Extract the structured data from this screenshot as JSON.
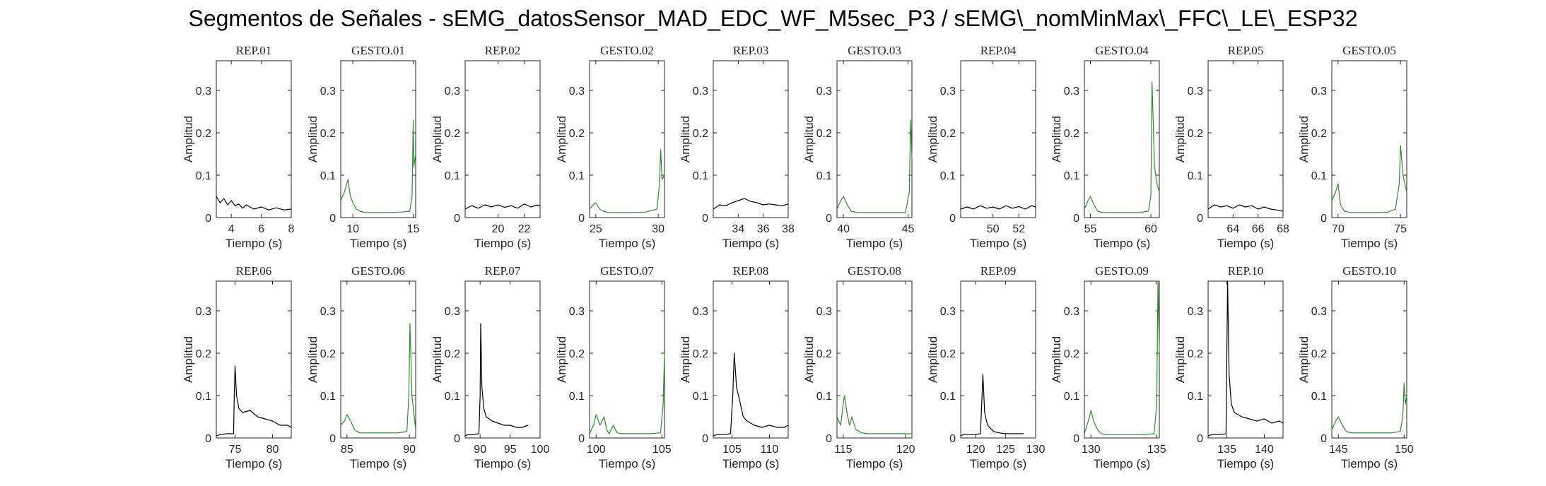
{
  "title": "Segmentos de Señales - sEMG_datosSensor_MAD_EDC_WF_M5sec_P3 / sEMG\\_nomMinMax\\_FFC\\_LE\\_ESP32",
  "colors": {
    "rep": "#000000",
    "gesto": "#2e8b2e",
    "axis": "#262626"
  },
  "chart_data": [
    {
      "type": "line",
      "title": "REP_01",
      "xlabel": "Tiempo (s)",
      "ylabel": "Amplitud",
      "xlim": [
        3,
        8
      ],
      "ylim": [
        0,
        0.37
      ],
      "xticks": [
        4,
        6,
        8
      ],
      "yticks": [
        0,
        0.1,
        0.2,
        0.3
      ],
      "color": "rep",
      "x": [
        3.0,
        3.25,
        3.5,
        3.75,
        4.0,
        4.25,
        4.5,
        4.75,
        5.0,
        5.5,
        6.0,
        6.5,
        7.0,
        7.5,
        8.0
      ],
      "y": [
        0.05,
        0.035,
        0.045,
        0.03,
        0.04,
        0.028,
        0.032,
        0.022,
        0.03,
        0.02,
        0.025,
        0.018,
        0.023,
        0.018,
        0.02
      ]
    },
    {
      "type": "line",
      "title": "GESTO_01",
      "xlabel": "Tiempo (s)",
      "ylabel": "Amplitud",
      "xlim": [
        9,
        15.2
      ],
      "ylim": [
        0,
        0.37
      ],
      "xticks": [
        10,
        15
      ],
      "yticks": [
        0,
        0.1,
        0.2,
        0.3
      ],
      "color": "gesto",
      "x": [
        9.0,
        9.3,
        9.6,
        9.8,
        10.0,
        10.3,
        10.6,
        11.0,
        12.0,
        13.0,
        14.0,
        14.7,
        14.9,
        15.0,
        15.05,
        15.2
      ],
      "y": [
        0.04,
        0.06,
        0.09,
        0.05,
        0.035,
        0.02,
        0.015,
        0.012,
        0.012,
        0.012,
        0.013,
        0.015,
        0.05,
        0.23,
        0.12,
        0.15
      ]
    },
    {
      "type": "line",
      "title": "REP_02",
      "xlabel": "Tiempo (s)",
      "ylabel": "Amplitud",
      "xlim": [
        17.5,
        23.2
      ],
      "ylim": [
        0,
        0.37
      ],
      "xticks": [
        20,
        22
      ],
      "yticks": [
        0,
        0.1,
        0.2,
        0.3
      ],
      "color": "rep",
      "x": [
        17.5,
        18.0,
        18.5,
        19.0,
        19.5,
        20.0,
        20.5,
        21.0,
        21.5,
        22.0,
        22.5,
        23.0,
        23.2
      ],
      "y": [
        0.02,
        0.028,
        0.022,
        0.03,
        0.025,
        0.03,
        0.024,
        0.028,
        0.022,
        0.032,
        0.025,
        0.03,
        0.027
      ]
    },
    {
      "type": "line",
      "title": "GESTO_02",
      "xlabel": "Tiempo (s)",
      "ylabel": "Amplitud",
      "xlim": [
        24.5,
        30.5
      ],
      "ylim": [
        0,
        0.37
      ],
      "xticks": [
        25,
        30
      ],
      "yticks": [
        0,
        0.1,
        0.2,
        0.3
      ],
      "color": "gesto",
      "x": [
        24.5,
        24.8,
        25.0,
        25.3,
        25.6,
        26.0,
        27.0,
        28.0,
        29.0,
        29.9,
        30.1,
        30.2,
        30.3,
        30.5
      ],
      "y": [
        0.02,
        0.03,
        0.035,
        0.02,
        0.015,
        0.012,
        0.012,
        0.012,
        0.013,
        0.02,
        0.08,
        0.16,
        0.09,
        0.1
      ]
    },
    {
      "type": "line",
      "title": "REP_03",
      "xlabel": "Tiempo (s)",
      "ylabel": "Amplitud",
      "xlim": [
        32,
        38
      ],
      "ylim": [
        0,
        0.37
      ],
      "xticks": [
        34,
        36,
        38
      ],
      "yticks": [
        0,
        0.1,
        0.2,
        0.3
      ],
      "color": "rep",
      "x": [
        32.0,
        32.5,
        33.0,
        33.5,
        34.0,
        34.5,
        35.0,
        35.5,
        36.0,
        36.5,
        37.0,
        37.5,
        38.0
      ],
      "y": [
        0.02,
        0.03,
        0.028,
        0.035,
        0.04,
        0.045,
        0.038,
        0.035,
        0.03,
        0.032,
        0.03,
        0.028,
        0.032
      ]
    },
    {
      "type": "line",
      "title": "GESTO_03",
      "xlabel": "Tiempo (s)",
      "ylabel": "Amplitud",
      "xlim": [
        39.5,
        45.3
      ],
      "ylim": [
        0,
        0.37
      ],
      "xticks": [
        40,
        45
      ],
      "yticks": [
        0,
        0.1,
        0.2,
        0.3
      ],
      "color": "gesto",
      "x": [
        39.5,
        39.8,
        40.0,
        40.3,
        40.6,
        41.0,
        42.0,
        43.0,
        44.0,
        44.8,
        45.1,
        45.2,
        45.3
      ],
      "y": [
        0.02,
        0.04,
        0.05,
        0.03,
        0.015,
        0.012,
        0.012,
        0.012,
        0.012,
        0.012,
        0.06,
        0.23,
        0.14
      ]
    },
    {
      "type": "line",
      "title": "REP_04",
      "xlabel": "Tiempo (s)",
      "ylabel": "Amplitud",
      "xlim": [
        47.5,
        53.3
      ],
      "ylim": [
        0,
        0.37
      ],
      "xticks": [
        50,
        52
      ],
      "yticks": [
        0,
        0.1,
        0.2,
        0.3
      ],
      "color": "rep",
      "x": [
        47.5,
        48.0,
        48.5,
        49.0,
        49.5,
        50.0,
        50.5,
        51.0,
        51.5,
        52.0,
        52.5,
        53.0,
        53.3
      ],
      "y": [
        0.02,
        0.025,
        0.02,
        0.028,
        0.022,
        0.025,
        0.02,
        0.028,
        0.022,
        0.026,
        0.02,
        0.028,
        0.025
      ]
    },
    {
      "type": "line",
      "title": "GESTO_04",
      "xlabel": "Tiempo (s)",
      "ylabel": "Amplitud",
      "xlim": [
        54.5,
        60.7
      ],
      "ylim": [
        0,
        0.37
      ],
      "xticks": [
        55,
        60
      ],
      "yticks": [
        0,
        0.1,
        0.2,
        0.3
      ],
      "color": "gesto",
      "x": [
        54.5,
        54.8,
        55.0,
        55.3,
        55.6,
        56.0,
        57.0,
        58.0,
        59.0,
        59.8,
        60.0,
        60.1,
        60.3,
        60.5,
        60.7
      ],
      "y": [
        0.02,
        0.04,
        0.05,
        0.03,
        0.015,
        0.012,
        0.012,
        0.012,
        0.012,
        0.015,
        0.05,
        0.32,
        0.12,
        0.08,
        0.06
      ]
    },
    {
      "type": "line",
      "title": "REP_05",
      "xlabel": "Tiempo (s)",
      "ylabel": "Amplitud",
      "xlim": [
        62,
        68
      ],
      "ylim": [
        0,
        0.37
      ],
      "xticks": [
        64,
        66,
        68
      ],
      "yticks": [
        0,
        0.1,
        0.2,
        0.3
      ],
      "color": "rep",
      "x": [
        62.0,
        62.5,
        63.0,
        63.5,
        64.0,
        64.5,
        65.0,
        65.5,
        66.0,
        66.5,
        67.0,
        67.5,
        68.0
      ],
      "y": [
        0.02,
        0.03,
        0.025,
        0.028,
        0.022,
        0.03,
        0.025,
        0.028,
        0.02,
        0.025,
        0.02,
        0.018,
        0.015
      ]
    },
    {
      "type": "line",
      "title": "GESTO_05",
      "xlabel": "Tiempo (s)",
      "ylabel": "Amplitud",
      "xlim": [
        69.5,
        75.5
      ],
      "ylim": [
        0,
        0.37
      ],
      "xticks": [
        70,
        75
      ],
      "yticks": [
        0,
        0.1,
        0.2,
        0.3
      ],
      "color": "gesto",
      "x": [
        69.5,
        69.8,
        70.0,
        70.2,
        70.5,
        71.0,
        72.0,
        73.0,
        74.0,
        74.6,
        74.9,
        75.0,
        75.2,
        75.5
      ],
      "y": [
        0.04,
        0.06,
        0.08,
        0.03,
        0.015,
        0.012,
        0.012,
        0.012,
        0.013,
        0.02,
        0.08,
        0.17,
        0.1,
        0.06
      ]
    },
    {
      "type": "line",
      "title": "REP_06",
      "xlabel": "Tiempo (s)",
      "ylabel": "Amplitud",
      "xlim": [
        72.5,
        82.5
      ],
      "ylim": [
        0,
        0.37
      ],
      "xticks": [
        75,
        80
      ],
      "yticks": [
        0,
        0.1,
        0.2,
        0.3
      ],
      "color": "rep",
      "x": [
        72.5,
        73.0,
        74.0,
        74.8,
        74.9,
        75.0,
        75.2,
        75.5,
        76.0,
        77.0,
        78.0,
        79.0,
        80.0,
        81.0,
        82.0,
        82.5
      ],
      "y": [
        0.005,
        0.008,
        0.01,
        0.01,
        0.1,
        0.17,
        0.1,
        0.07,
        0.06,
        0.065,
        0.05,
        0.045,
        0.04,
        0.03,
        0.03,
        0.025
      ]
    },
    {
      "type": "line",
      "title": "GESTO_06",
      "xlabel": "Tiempo (s)",
      "ylabel": "Amplitud",
      "xlim": [
        84.5,
        90.5
      ],
      "ylim": [
        0,
        0.37
      ],
      "xticks": [
        85,
        90
      ],
      "yticks": [
        0,
        0.1,
        0.2,
        0.3
      ],
      "color": "gesto",
      "x": [
        84.5,
        84.8,
        85.0,
        85.3,
        85.6,
        86.0,
        87.0,
        88.0,
        89.0,
        89.8,
        89.95,
        90.05,
        90.2,
        90.5
      ],
      "y": [
        0.03,
        0.04,
        0.055,
        0.04,
        0.02,
        0.012,
        0.012,
        0.012,
        0.012,
        0.015,
        0.1,
        0.27,
        0.1,
        0.02
      ]
    },
    {
      "type": "line",
      "title": "REP_07",
      "xlabel": "Tiempo (s)",
      "ylabel": "Amplitud",
      "xlim": [
        87.5,
        100
      ],
      "ylim": [
        0,
        0.37
      ],
      "xticks": [
        90,
        95,
        100
      ],
      "yticks": [
        0,
        0.1,
        0.2,
        0.3
      ],
      "color": "rep",
      "x": [
        87.5,
        88.0,
        89.0,
        89.8,
        90.0,
        90.1,
        90.3,
        90.6,
        91.0,
        92.0,
        93.0,
        94.0,
        95.0,
        96.0,
        97.0,
        98.0
      ],
      "y": [
        0.005,
        0.008,
        0.008,
        0.01,
        0.1,
        0.27,
        0.12,
        0.07,
        0.05,
        0.04,
        0.035,
        0.03,
        0.03,
        0.025,
        0.025,
        0.03
      ]
    },
    {
      "type": "line",
      "title": "GESTO_07",
      "xlabel": "Tiempo (s)",
      "ylabel": "Amplitud",
      "xlim": [
        99.5,
        105.2
      ],
      "ylim": [
        0,
        0.37
      ],
      "xticks": [
        100,
        105
      ],
      "yticks": [
        0,
        0.1,
        0.2,
        0.3
      ],
      "color": "gesto",
      "x": [
        99.5,
        99.8,
        100.0,
        100.3,
        100.6,
        100.8,
        101.0,
        101.3,
        101.6,
        102.0,
        103.0,
        104.0,
        104.9,
        105.1,
        105.2
      ],
      "y": [
        0.01,
        0.03,
        0.055,
        0.03,
        0.05,
        0.02,
        0.01,
        0.03,
        0.012,
        0.01,
        0.01,
        0.01,
        0.012,
        0.08,
        0.2
      ]
    },
    {
      "type": "line",
      "title": "REP_08",
      "xlabel": "Tiempo (s)",
      "ylabel": "Amplitud",
      "xlim": [
        102.5,
        112.5
      ],
      "ylim": [
        0,
        0.37
      ],
      "xticks": [
        105,
        110
      ],
      "yticks": [
        0,
        0.1,
        0.2,
        0.3
      ],
      "color": "rep",
      "x": [
        102.5,
        103.0,
        104.0,
        104.8,
        105.1,
        105.3,
        105.6,
        106.0,
        106.5,
        107.0,
        108.0,
        109.0,
        110.0,
        111.0,
        112.0,
        112.5
      ],
      "y": [
        0.005,
        0.008,
        0.008,
        0.01,
        0.1,
        0.2,
        0.12,
        0.09,
        0.05,
        0.04,
        0.03,
        0.025,
        0.03,
        0.025,
        0.025,
        0.03
      ]
    },
    {
      "type": "line",
      "title": "GESTO_08",
      "xlabel": "Tiempo (s)",
      "ylabel": "Amplitud",
      "xlim": [
        114.5,
        120.5
      ],
      "ylim": [
        0,
        0.37
      ],
      "xticks": [
        115,
        120
      ],
      "yticks": [
        0,
        0.1,
        0.2,
        0.3
      ],
      "color": "gesto",
      "x": [
        114.5,
        114.8,
        115.0,
        115.1,
        115.3,
        115.5,
        115.7,
        116.0,
        116.5,
        117.0,
        118.0,
        119.0,
        120.0,
        120.5
      ],
      "y": [
        0.05,
        0.03,
        0.08,
        0.1,
        0.06,
        0.03,
        0.05,
        0.02,
        0.012,
        0.01,
        0.01,
        0.01,
        0.01,
        0.01
      ]
    },
    {
      "type": "line",
      "title": "REP_09",
      "xlabel": "Tiempo (s)",
      "ylabel": "Amplitud",
      "xlim": [
        117.5,
        130
      ],
      "ylim": [
        0,
        0.37
      ],
      "xticks": [
        120,
        125,
        130
      ],
      "yticks": [
        0,
        0.1,
        0.2,
        0.3
      ],
      "color": "rep",
      "x": [
        117.5,
        118.0,
        119.0,
        120.0,
        120.8,
        121.0,
        121.2,
        121.5,
        121.8,
        122.0,
        123.0,
        124.0,
        125.0,
        126.0,
        127.0,
        128.0
      ],
      "y": [
        0.005,
        0.008,
        0.008,
        0.008,
        0.01,
        0.08,
        0.15,
        0.06,
        0.04,
        0.03,
        0.015,
        0.012,
        0.01,
        0.01,
        0.01,
        0.01
      ]
    },
    {
      "type": "line",
      "title": "GESTO_09",
      "xlabel": "Tiempo (s)",
      "ylabel": "Amplitud",
      "xlim": [
        129.5,
        135.2
      ],
      "ylim": [
        0,
        0.37
      ],
      "xticks": [
        130,
        135
      ],
      "yticks": [
        0,
        0.1,
        0.2,
        0.3
      ],
      "color": "gesto",
      "x": [
        129.5,
        129.8,
        130.0,
        130.2,
        130.5,
        130.8,
        131.0,
        132.0,
        133.0,
        134.0,
        134.8,
        135.0,
        135.1,
        135.2
      ],
      "y": [
        0.01,
        0.04,
        0.065,
        0.04,
        0.02,
        0.01,
        0.008,
        0.008,
        0.008,
        0.008,
        0.01,
        0.08,
        0.37,
        0.2
      ]
    },
    {
      "type": "line",
      "title": "REP_10",
      "xlabel": "Tiempo (s)",
      "ylabel": "Amplitud",
      "xlim": [
        132.5,
        142.5
      ],
      "ylim": [
        0,
        0.37
      ],
      "xticks": [
        135,
        140
      ],
      "yticks": [
        0,
        0.1,
        0.2,
        0.3
      ],
      "color": "rep",
      "x": [
        132.5,
        133.0,
        134.0,
        134.9,
        135.0,
        135.1,
        135.3,
        135.6,
        136.0,
        137.0,
        138.0,
        139.0,
        140.0,
        141.0,
        142.0,
        142.5
      ],
      "y": [
        0.005,
        0.008,
        0.008,
        0.01,
        0.2,
        0.37,
        0.15,
        0.08,
        0.06,
        0.05,
        0.045,
        0.04,
        0.045,
        0.035,
        0.04,
        0.035
      ]
    },
    {
      "type": "line",
      "title": "GESTO_10",
      "xlabel": "Tiempo (s)",
      "ylabel": "Amplitud",
      "xlim": [
        144.5,
        150.2
      ],
      "ylim": [
        0,
        0.37
      ],
      "xticks": [
        145,
        150
      ],
      "yticks": [
        0,
        0.1,
        0.2,
        0.3
      ],
      "color": "gesto",
      "x": [
        144.5,
        144.8,
        145.0,
        145.3,
        145.6,
        146.0,
        147.0,
        148.0,
        149.0,
        149.7,
        149.9,
        150.0,
        150.1,
        150.2
      ],
      "y": [
        0.02,
        0.04,
        0.05,
        0.03,
        0.015,
        0.012,
        0.012,
        0.012,
        0.012,
        0.015,
        0.05,
        0.13,
        0.08,
        0.1
      ]
    }
  ]
}
